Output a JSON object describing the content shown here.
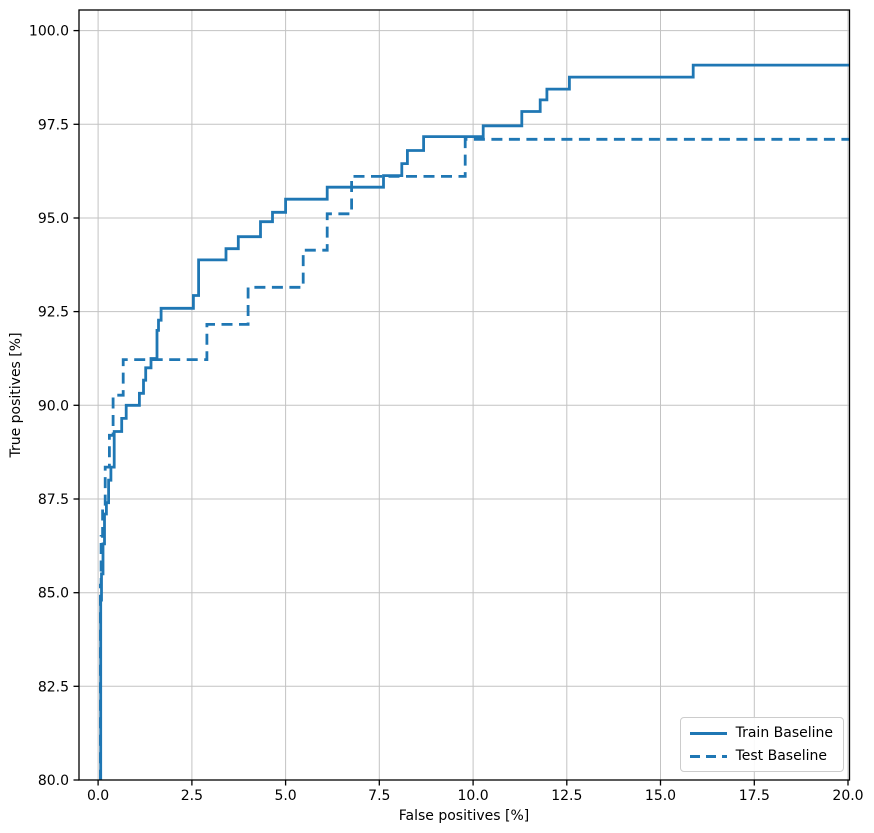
{
  "figure": {
    "xlabel": "False positives [%]",
    "ylabel": "True positives [%]"
  },
  "legend": {
    "items": [
      {
        "label": "Train Baseline",
        "style": "solid"
      },
      {
        "label": "Test Baseline",
        "style": "dashed"
      }
    ]
  },
  "chart_data": {
    "type": "line",
    "subtype": "step-post",
    "title": "",
    "xlabel": "False positives [%]",
    "ylabel": "True positives [%]",
    "xlim": [
      -0.51,
      20.04
    ],
    "ylim": [
      80,
      100.55
    ],
    "xticks": [
      0.0,
      2.5,
      5.0,
      7.5,
      10.0,
      12.5,
      15.0,
      17.5,
      20.0
    ],
    "yticks": [
      80.0,
      82.5,
      85.0,
      87.5,
      90.0,
      92.5,
      95.0,
      97.5,
      100.0
    ],
    "grid": true,
    "legend_position": "lower right",
    "colors": {
      "line": "#1f77b4",
      "grid": "#c3c3c3",
      "spine": "#000000",
      "text": "#000000",
      "legend_border": "#cccccc"
    },
    "series": [
      {
        "name": "Train Baseline",
        "linestyle": "solid",
        "points": [
          [
            0.06,
            80.0
          ],
          [
            0.07,
            84.8
          ],
          [
            0.09,
            85.5
          ],
          [
            0.13,
            86.3
          ],
          [
            0.17,
            87.1
          ],
          [
            0.22,
            87.4
          ],
          [
            0.28,
            88.0
          ],
          [
            0.34,
            88.35
          ],
          [
            0.43,
            89.3
          ],
          [
            0.63,
            89.65
          ],
          [
            0.75,
            90.0
          ],
          [
            1.1,
            90.32
          ],
          [
            1.21,
            90.67
          ],
          [
            1.27,
            91.0
          ],
          [
            1.41,
            91.25
          ],
          [
            1.57,
            92.0
          ],
          [
            1.61,
            92.27
          ],
          [
            1.68,
            92.59
          ],
          [
            2.54,
            92.93
          ],
          [
            2.68,
            93.88
          ],
          [
            3.41,
            94.18
          ],
          [
            3.74,
            94.5
          ],
          [
            4.33,
            94.9
          ],
          [
            4.65,
            95.15
          ],
          [
            5.0,
            95.5
          ],
          [
            6.11,
            95.82
          ],
          [
            7.61,
            96.13
          ],
          [
            8.1,
            96.45
          ],
          [
            8.25,
            96.8
          ],
          [
            8.68,
            97.17
          ],
          [
            10.27,
            97.46
          ],
          [
            11.3,
            97.84
          ],
          [
            11.79,
            98.15
          ],
          [
            11.97,
            98.44
          ],
          [
            12.57,
            98.76
          ],
          [
            15.87,
            99.08
          ],
          [
            20.06,
            99.08
          ]
        ]
      },
      {
        "name": "Test Baseline",
        "linestyle": "dashed",
        "points": [
          [
            0.04,
            80.0
          ],
          [
            0.06,
            85.2
          ],
          [
            0.08,
            86.5
          ],
          [
            0.12,
            87.3
          ],
          [
            0.19,
            88.35
          ],
          [
            0.3,
            89.2
          ],
          [
            0.4,
            90.27
          ],
          [
            0.67,
            91.22
          ],
          [
            2.9,
            92.16
          ],
          [
            4.0,
            93.15
          ],
          [
            5.47,
            94.14
          ],
          [
            6.11,
            95.11
          ],
          [
            6.76,
            96.11
          ],
          [
            9.79,
            97.1
          ],
          [
            20.06,
            97.1
          ]
        ]
      }
    ]
  }
}
